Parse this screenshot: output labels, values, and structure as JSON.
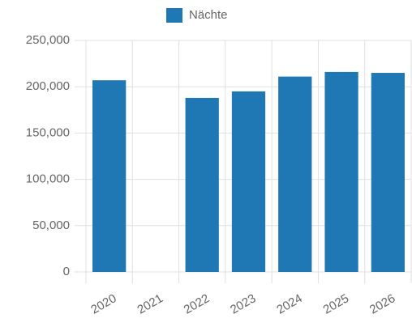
{
  "chart_data": {
    "type": "bar",
    "categories": [
      "2020",
      "2021",
      "2022",
      "2023",
      "2024",
      "2025",
      "2026"
    ],
    "series": [
      {
        "name": "Nächte",
        "color": "#1f77b4",
        "values": [
          207000,
          null,
          188000,
          195000,
          211000,
          216000,
          215000
        ]
      }
    ],
    "ylim": [
      0,
      250000
    ],
    "yticks": [
      0,
      {
        "value": 50000,
        "label": "50,000"
      },
      {
        "value": 100000,
        "label": "100,000"
      },
      {
        "value": 150000,
        "label": "150,000"
      },
      {
        "value": 200000,
        "label": "200,000"
      },
      {
        "value": 250000,
        "label": "250,000"
      }
    ],
    "grid": true,
    "legend": "top"
  }
}
